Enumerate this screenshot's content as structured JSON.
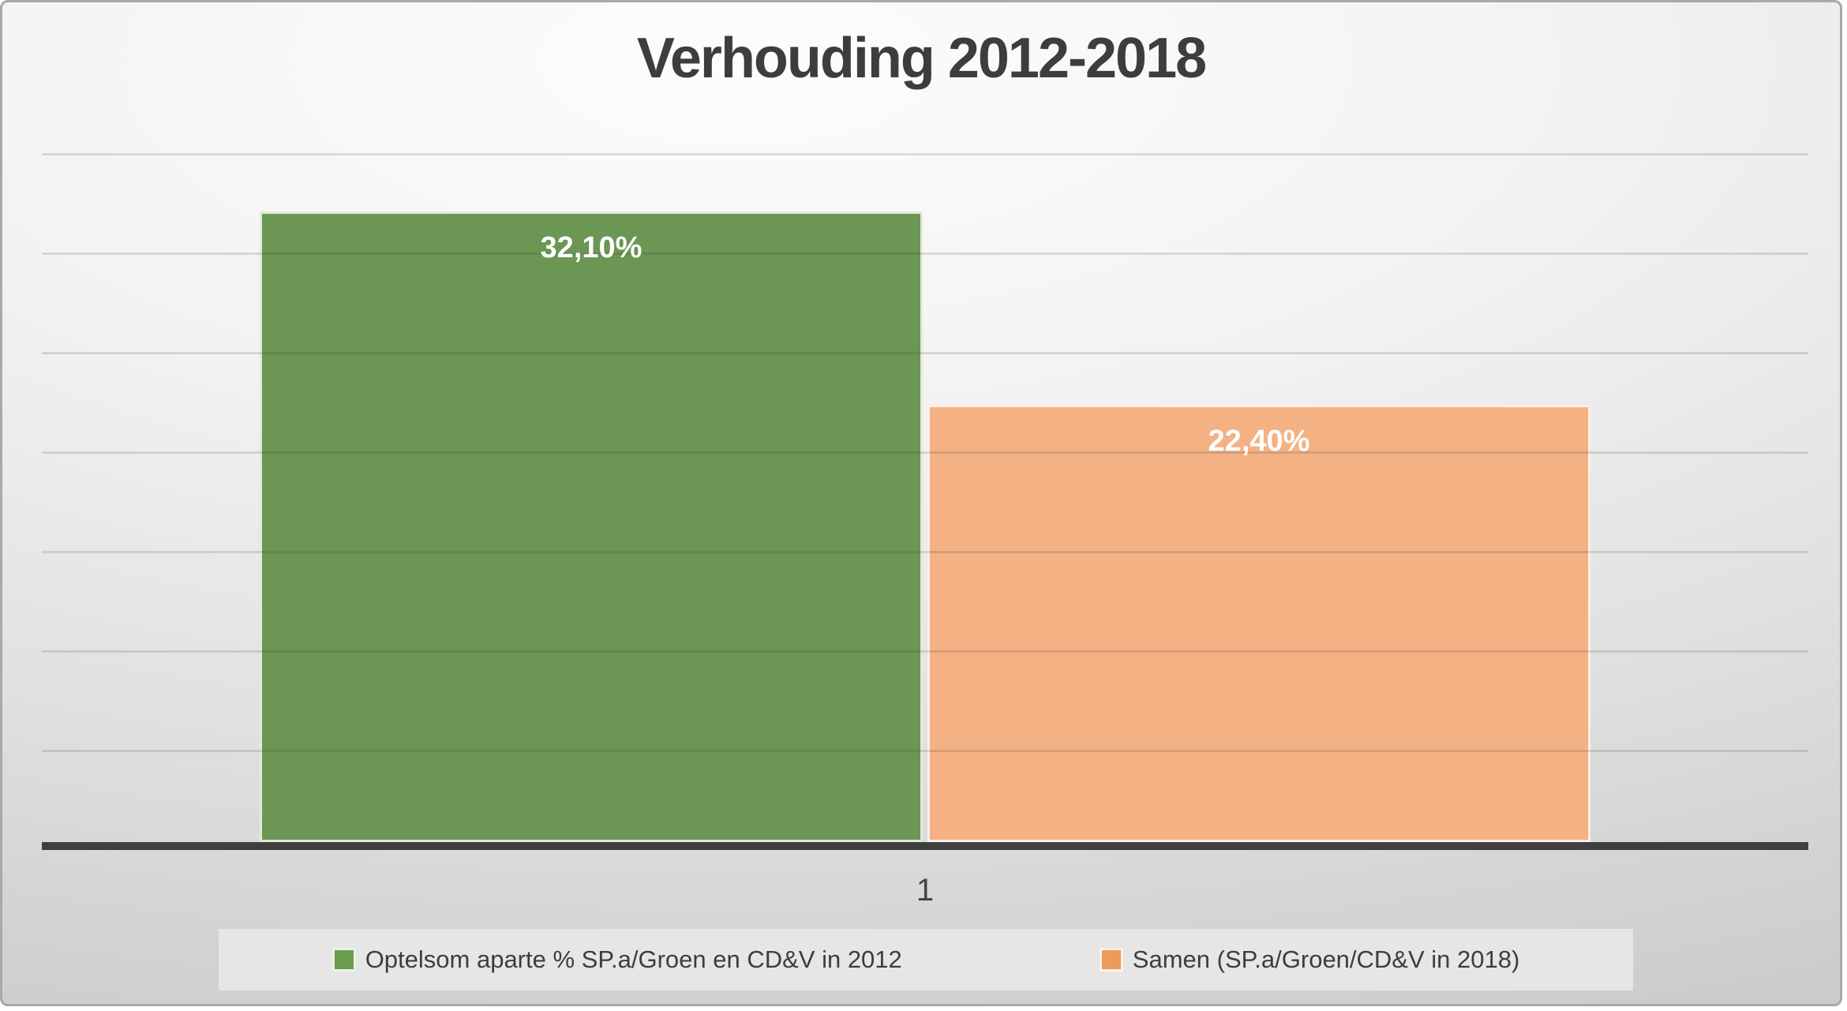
{
  "chart_data": {
    "type": "bar",
    "title": "Verhouding 2012-2018",
    "categories": [
      "1"
    ],
    "series": [
      {
        "name": "Optelsom aparte % SP.a/Groen en CD&V in 2012",
        "values": [
          32.1
        ],
        "data_labels": [
          "32,10%"
        ],
        "color": "#6b9653",
        "legend_color": "#6a9b4f"
      },
      {
        "name": "Samen (SP.a/Groen/CD&V in 2018)",
        "values": [
          22.4
        ],
        "data_labels": [
          "22,40%"
        ],
        "color": "#f4b183",
        "legend_color": "#ec9b5a"
      }
    ],
    "ylim": [
      0,
      35
    ],
    "gridline_interval": 5,
    "grid": true,
    "y_axis_labels": false,
    "data_label_position": "inside-end",
    "legend_position": "bottom"
  },
  "colors": {
    "title_text": "#3d3d3d",
    "axis_line": "#3f3f3f",
    "data_label_text": "#ffffff",
    "legend_bg": "#e6e6e6",
    "legend_text": "#3d3d3d"
  }
}
